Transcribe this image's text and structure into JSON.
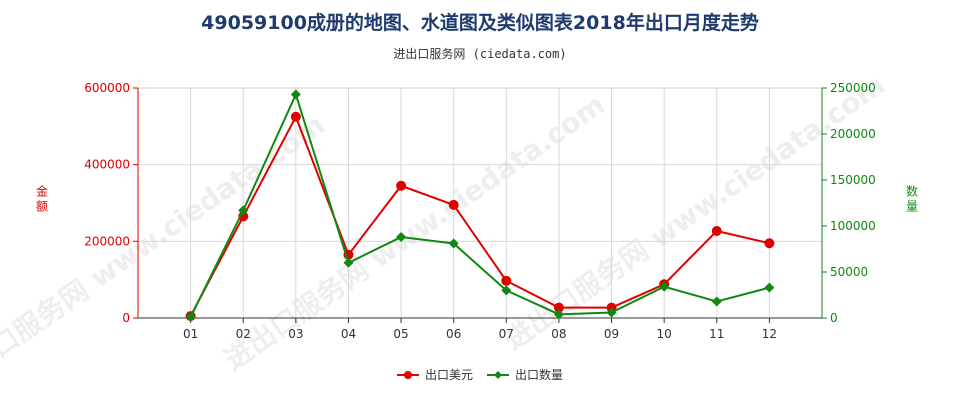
{
  "header": {
    "title": "49059100成册的地图、水道图及类似图表2018年出口月度走势",
    "source": "进出口服务网 (ciedata.com)"
  },
  "colors": {
    "left_axis": "#e00000",
    "right_axis": "#118811",
    "grid": "#d9d9d9",
    "watermark": "#eeeeee"
  },
  "watermark": {
    "text": "进出口服务网 www.ciedata.com"
  },
  "chart_data": {
    "type": "line",
    "categories": [
      "01",
      "02",
      "03",
      "04",
      "05",
      "06",
      "07",
      "08",
      "09",
      "10",
      "11",
      "12"
    ],
    "y_left": {
      "label": "金额",
      "ticks": [
        "0",
        "200000",
        "400000",
        "600000"
      ],
      "range": [
        0,
        600000
      ]
    },
    "y_right": {
      "label": "数量",
      "ticks": [
        "0",
        "50000",
        "100000",
        "150000",
        "200000",
        "250000"
      ],
      "range": [
        0,
        250000
      ]
    },
    "series": [
      {
        "name": "出口美元",
        "axis": "left",
        "color": "#e00000",
        "values": [
          5000,
          265000,
          525000,
          165000,
          345000,
          295000,
          97000,
          27000,
          27000,
          88000,
          227000,
          195000
        ]
      },
      {
        "name": "出口数量",
        "axis": "right",
        "color": "#118811",
        "values": [
          1000,
          117000,
          243000,
          60000,
          88000,
          81000,
          30000,
          4000,
          6000,
          34000,
          18000,
          33000
        ]
      }
    ],
    "legend_position": "bottom-center",
    "grid": true
  }
}
